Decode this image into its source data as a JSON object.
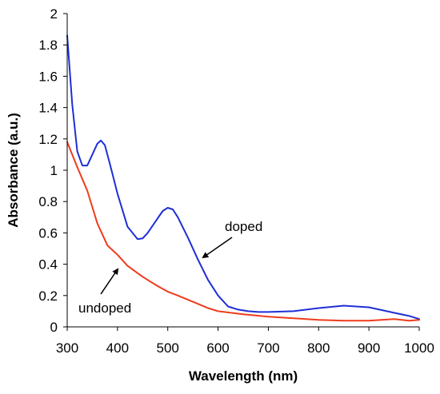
{
  "chart_data": {
    "type": "line",
    "title": "",
    "xlabel": "Wavelength (nm)",
    "ylabel": "Absorbance (a.u.)",
    "xlim": [
      300,
      1000
    ],
    "ylim": [
      0,
      2
    ],
    "x_ticks": [
      "300",
      "400",
      "500",
      "600",
      "700",
      "800",
      "900",
      "1000"
    ],
    "y_ticks": [
      "0",
      "0.2",
      "0.4",
      "0.6",
      "0.8",
      "1",
      "1.2",
      "1.4",
      "1.6",
      "1.8",
      "2"
    ],
    "grid": false,
    "legend": "none",
    "series": [
      {
        "color": "#1f2fd6",
        "x": [
          300,
          310,
          320,
          330,
          340,
          350,
          360,
          367,
          375,
          385,
          400,
          420,
          440,
          450,
          460,
          475,
          490,
          500,
          510,
          520,
          540,
          560,
          580,
          600,
          620,
          640,
          660,
          680,
          700,
          750,
          800,
          850,
          900,
          950,
          980,
          1000
        ],
        "y": [
          1.86,
          1.42,
          1.12,
          1.03,
          1.03,
          1.1,
          1.17,
          1.19,
          1.16,
          1.04,
          0.85,
          0.64,
          0.56,
          0.565,
          0.6,
          0.67,
          0.74,
          0.76,
          0.75,
          0.7,
          0.57,
          0.43,
          0.3,
          0.2,
          0.13,
          0.11,
          0.1,
          0.095,
          0.095,
          0.1,
          0.12,
          0.135,
          0.125,
          0.09,
          0.07,
          0.05
        ]
      },
      {
        "color": "#ef3b1c",
        "x": [
          300,
          320,
          340,
          360,
          380,
          400,
          420,
          450,
          480,
          500,
          520,
          550,
          580,
          600,
          650,
          700,
          750,
          800,
          850,
          900,
          950,
          980,
          1000
        ],
        "y": [
          1.18,
          1.02,
          0.87,
          0.66,
          0.52,
          0.46,
          0.39,
          0.32,
          0.26,
          0.225,
          0.2,
          0.16,
          0.12,
          0.1,
          0.08,
          0.065,
          0.055,
          0.045,
          0.04,
          0.04,
          0.05,
          0.04,
          0.045
        ]
      }
    ],
    "annotations": [
      {
        "text": "doped",
        "x": 600,
        "y": 0.64
      },
      {
        "text": "undoped",
        "x": 345,
        "y": 0.11
      }
    ]
  }
}
